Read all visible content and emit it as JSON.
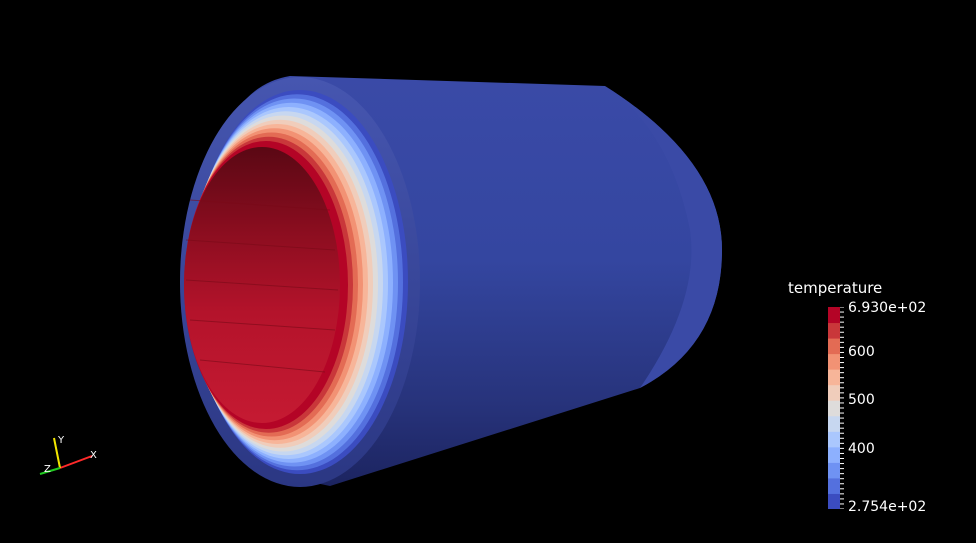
{
  "scalar_bar": {
    "title": "temperature",
    "max_label": "6.930e+02",
    "min_label": "2.754e+02",
    "min_value": 275.4,
    "max_value": 693.0,
    "ticks": [
      "600",
      "500",
      "400"
    ],
    "tick_values": [
      600,
      500,
      400
    ],
    "color_bands": [
      "#3b4cc0",
      "#5470de",
      "#6f92f3",
      "#8db0fe",
      "#aac7fd",
      "#c7d7f0",
      "#dedcdb",
      "#f0cdbb",
      "#f7b599",
      "#f29274",
      "#e36b54",
      "#c9373a",
      "#b40426"
    ]
  },
  "orientation_axes": {
    "x_label": "X",
    "y_label": "Y",
    "z_label": "Z",
    "x_color": "#ff2a2a",
    "y_color": "#f2e600",
    "z_color": "#22cc22"
  },
  "scene": {
    "background": "#000000",
    "outer_color": "#3a4aa6",
    "inner_hot": "#b40426"
  }
}
